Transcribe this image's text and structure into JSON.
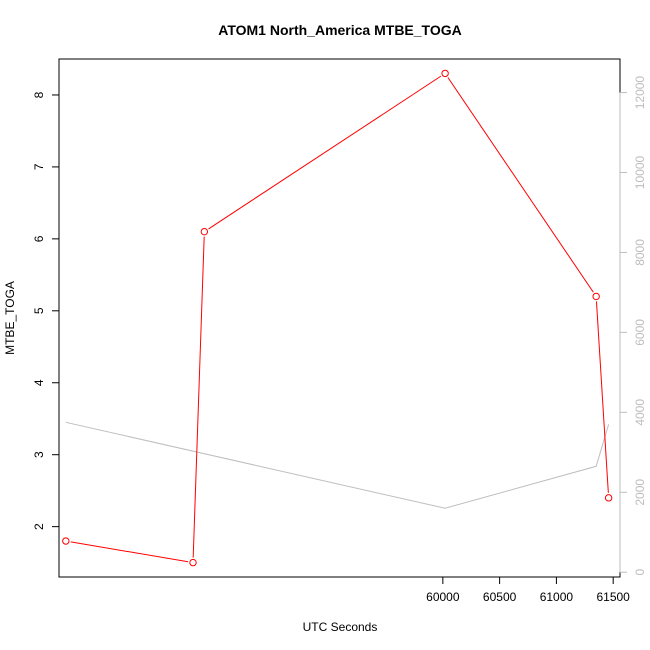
{
  "chart_data": {
    "type": "line",
    "title": "ATOM1 North_America MTBE_TOGA",
    "xlabel": "UTC Seconds",
    "ylabel": "MTBE_TOGA",
    "xlim": [
      56620,
      61560
    ],
    "ylim": [
      1.3,
      8.5
    ],
    "x_ticks": [
      60000,
      60500,
      61000,
      61500
    ],
    "y_ticks": [
      2,
      3,
      4,
      5,
      6,
      7,
      8
    ],
    "y2lim": [
      -120,
      12840
    ],
    "y2_ticks": [
      0,
      2000,
      4000,
      6000,
      8000,
      10000,
      12000
    ],
    "grid": false,
    "colors": {
      "primary": "#ff0000",
      "secondary": "#bebebe"
    },
    "series": [
      {
        "axis": "left",
        "style": "line-points",
        "x": [
          56680,
          57800,
          57900,
          60020,
          61350,
          61460
        ],
        "y": [
          1.8,
          1.5,
          6.1,
          8.3,
          5.2,
          2.4
        ]
      },
      {
        "axis": "right",
        "style": "line",
        "x": [
          56680,
          60020,
          61350,
          61460
        ],
        "y": [
          3750,
          1600,
          2650,
          3700
        ]
      }
    ]
  }
}
